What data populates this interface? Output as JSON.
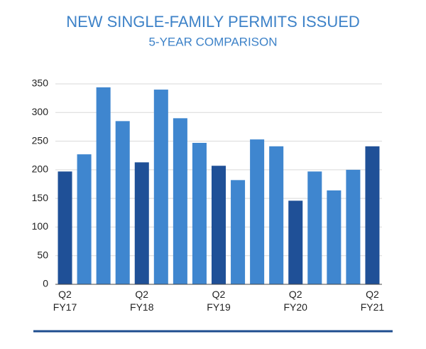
{
  "chart_data": {
    "type": "bar",
    "title": "NEW SINGLE-FAMILY PERMITS ISSUED",
    "subtitle": "5-YEAR COMPARISON",
    "categories": [
      "Q2\nFY17",
      null,
      null,
      null,
      "Q2\nFY18",
      null,
      null,
      null,
      "Q2\nFY19",
      null,
      null,
      null,
      "Q2\nFY20",
      null,
      null,
      null,
      "Q2\nFY21"
    ],
    "values": [
      197,
      227,
      344,
      285,
      213,
      340,
      290,
      247,
      207,
      182,
      253,
      241,
      146,
      197,
      164,
      200,
      241
    ],
    "colors": [
      "#1f5097",
      "#3f86cf",
      "#3f86cf",
      "#3f86cf",
      "#1f5097",
      "#3f86cf",
      "#3f86cf",
      "#3f86cf",
      "#1f5097",
      "#3f86cf",
      "#3f86cf",
      "#3f86cf",
      "#1f5097",
      "#3f86cf",
      "#3f86cf",
      "#3f86cf",
      "#1f5097"
    ],
    "ylim": [
      0,
      350
    ],
    "yticks": [
      0,
      50,
      100,
      150,
      200,
      250,
      300,
      350
    ],
    "grid": true
  }
}
